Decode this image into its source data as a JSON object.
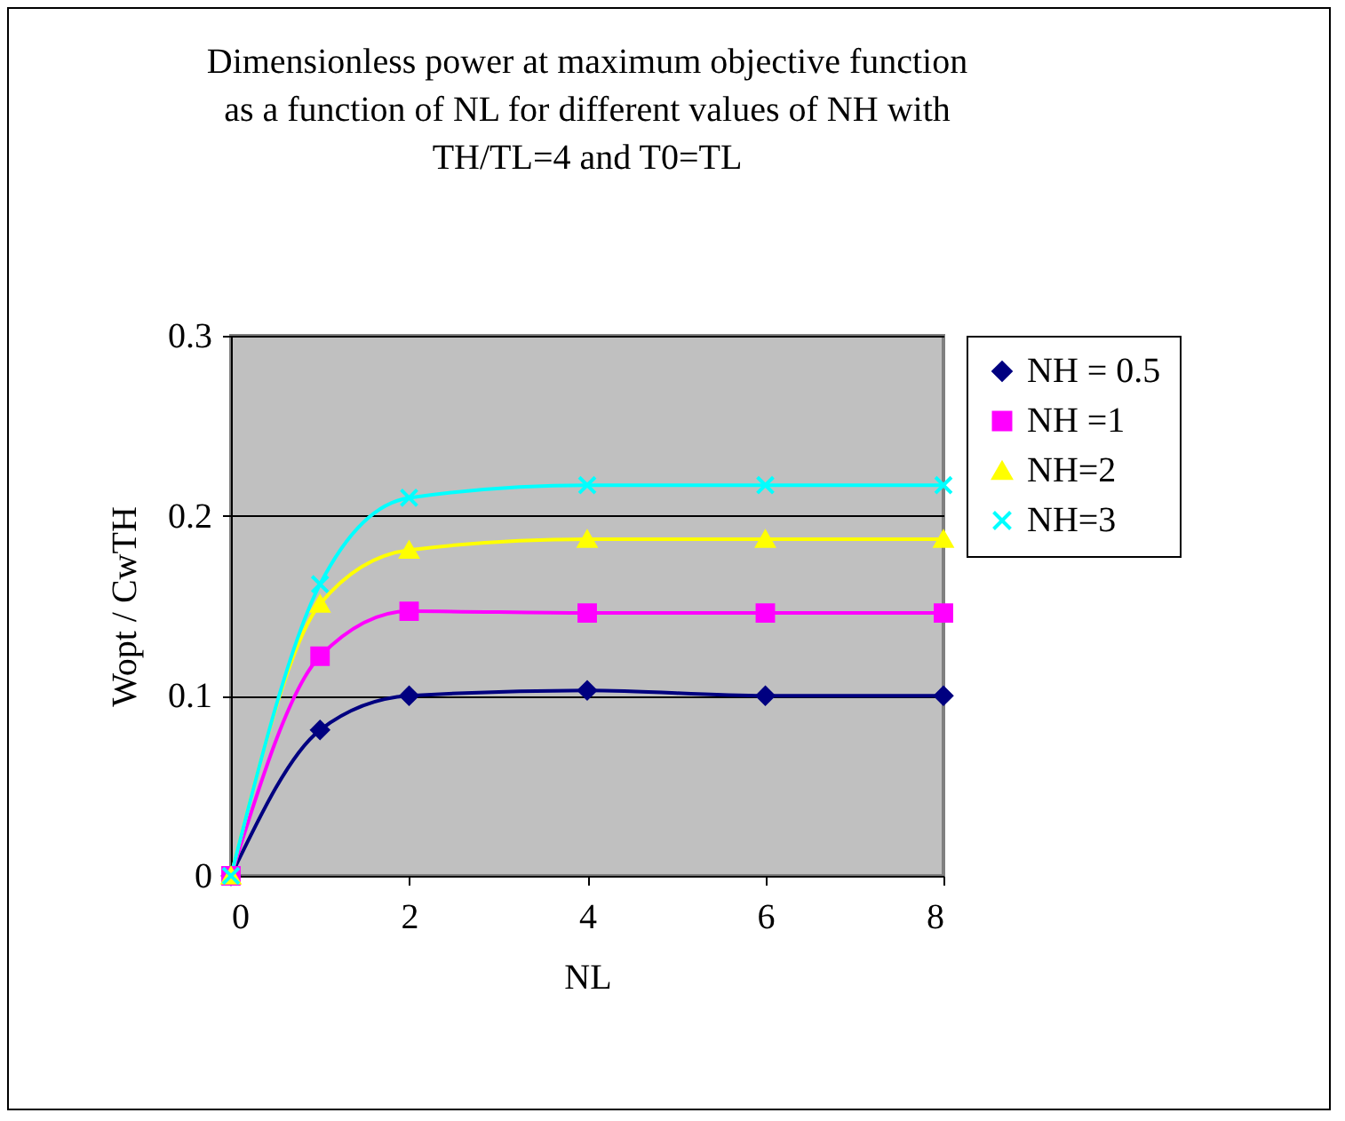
{
  "chart_data": {
    "type": "line",
    "title": "Dimensionless power at maximum objective function as a function of NL for different values of NH with TH/TL=4 and T0=TL",
    "xlabel": "NL",
    "ylabel": "Wopt / CwTH",
    "x": [
      0,
      1,
      2,
      4,
      6,
      8
    ],
    "series": [
      {
        "name": "NH = 0.5",
        "color": "#000080",
        "marker": "diamond",
        "values": [
          0,
          0.081,
          0.1,
          0.103,
          0.1,
          0.1
        ]
      },
      {
        "name": "NH =1",
        "color": "#ff00ff",
        "marker": "square",
        "values": [
          0,
          0.122,
          0.147,
          0.146,
          0.146,
          0.146
        ]
      },
      {
        "name": "NH=2",
        "color": "#ffff00",
        "marker": "triangle",
        "values": [
          0,
          0.151,
          0.181,
          0.187,
          0.187,
          0.187
        ]
      },
      {
        "name": "NH=3",
        "color": "#00ffff",
        "marker": "cross",
        "values": [
          0,
          0.162,
          0.21,
          0.217,
          0.217,
          0.217
        ]
      }
    ],
    "xlim": [
      0,
      8
    ],
    "xticks": [
      0,
      2,
      4,
      6,
      8
    ],
    "ylim": [
      0,
      0.3
    ],
    "yticks": [
      0,
      0.1,
      0.2,
      0.3
    ],
    "grid": "y",
    "legend": "right"
  }
}
